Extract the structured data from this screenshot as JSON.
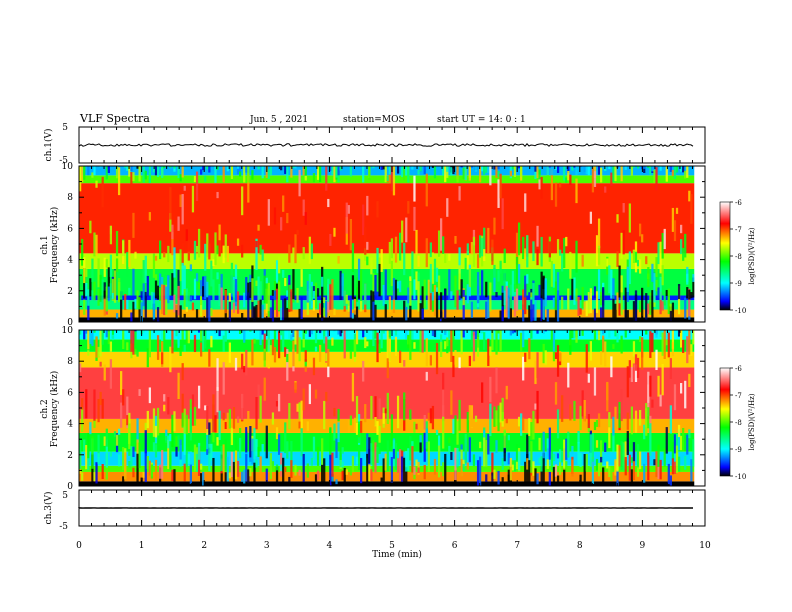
{
  "header": {
    "title": "VLF Spectra",
    "date": "Jun. 5 , 2021",
    "station": "station=MOS",
    "start_ut": "start UT =  14: 0 : 1"
  },
  "panels": {
    "ch1_wave_label": "ch.1(V)",
    "ch1_spec_label": "ch.1",
    "ch2_spec_label": "ch.2",
    "ch3_wave_label": "ch.3(V)",
    "freq_label": "Frequency (kHz)",
    "wave_ticks": [
      "5",
      "-5"
    ],
    "freq_ticks": [
      "0",
      "2",
      "4",
      "6",
      "8",
      "10"
    ]
  },
  "colorbar": {
    "label": "log(PSD)(V²/Hz)",
    "ticks": [
      "-6",
      "-7",
      "-8",
      "-9",
      "-10"
    ]
  },
  "chart_data": {
    "type": "heatmap",
    "xlabel": "Time (min)",
    "xlim": [
      0,
      10
    ],
    "x_ticks": [
      "0",
      "1",
      "2",
      "3",
      "4",
      "5",
      "6",
      "7",
      "8",
      "9",
      "10"
    ],
    "ylabel": "Frequency (kHz)",
    "ylim": [
      0,
      10
    ],
    "data_end_min": 9.83,
    "colorscale_range": [
      -10,
      -6
    ],
    "colors": {
      "high": "#ff0000",
      "mid_high": "#ffff00",
      "mid": "#00ff00",
      "mid_low": "#00ffff",
      "low": "#0000ff",
      "lowest": "#000000"
    },
    "series": [
      {
        "name": "ch.1",
        "bands_khz": [
          {
            "from": 0.0,
            "to": 0.3,
            "level": -10
          },
          {
            "from": 0.3,
            "to": 0.8,
            "level": -7.3
          },
          {
            "from": 0.8,
            "to": 1.4,
            "level": -8.6
          },
          {
            "from": 1.4,
            "to": 1.7,
            "level": -9.6
          },
          {
            "from": 1.7,
            "to": 3.4,
            "level": -8.4
          },
          {
            "from": 3.4,
            "to": 4.4,
            "level": -7.7
          },
          {
            "from": 4.4,
            "to": 8.9,
            "level": -6.9
          },
          {
            "from": 8.9,
            "to": 9.4,
            "level": -8.0
          },
          {
            "from": 9.4,
            "to": 10.0,
            "level": -9.2
          }
        ]
      },
      {
        "name": "ch.2",
        "bands_khz": [
          {
            "from": 0.0,
            "to": 0.3,
            "level": -10
          },
          {
            "from": 0.3,
            "to": 0.9,
            "level": -7.2
          },
          {
            "from": 0.9,
            "to": 1.3,
            "level": -8.0
          },
          {
            "from": 1.3,
            "to": 2.2,
            "level": -9.1
          },
          {
            "from": 2.2,
            "to": 3.4,
            "level": -8.3
          },
          {
            "from": 3.4,
            "to": 4.3,
            "level": -7.3
          },
          {
            "from": 4.3,
            "to": 7.6,
            "level": -6.6
          },
          {
            "from": 7.6,
            "to": 8.6,
            "level": -7.4
          },
          {
            "from": 8.6,
            "to": 9.4,
            "level": -8.3
          },
          {
            "from": 9.4,
            "to": 10.0,
            "level": -9.0
          }
        ]
      }
    ],
    "waveforms": [
      {
        "name": "ch.1(V)",
        "ylim": [
          -5,
          5
        ],
        "level": 0
      },
      {
        "name": "ch.3(V)",
        "ylim": [
          -5,
          5
        ],
        "level": 0
      }
    ]
  }
}
